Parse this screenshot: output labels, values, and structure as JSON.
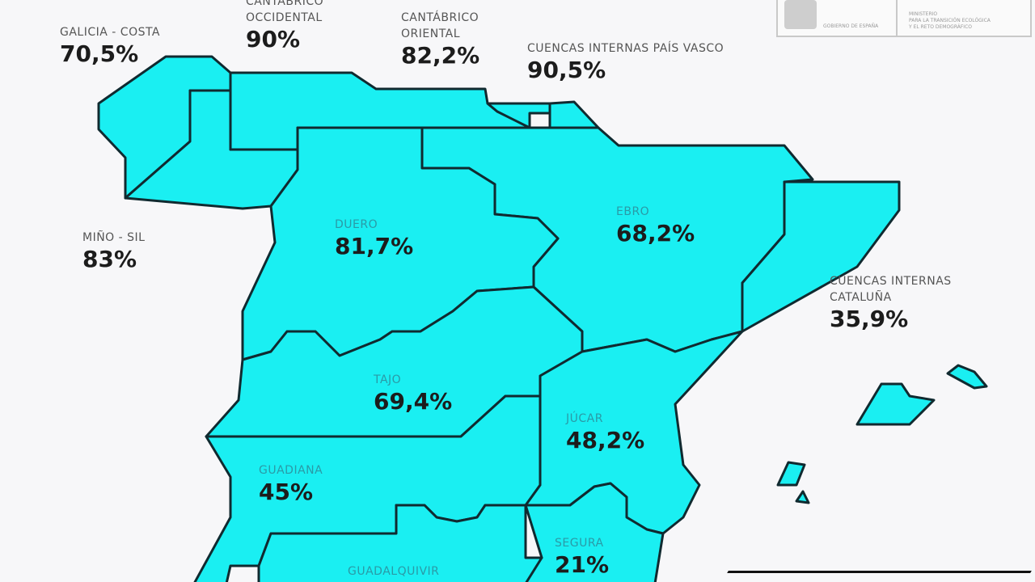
{
  "logo": {
    "government": "GOBIERNO DE ESPAÑA",
    "ministry_line1": "MINISTERIO",
    "ministry_line2": "PARA LA TRANSICIÓN ECOLÓGICA",
    "ministry_line3": "Y EL RETO DEMOGRÁFICO"
  },
  "colors": {
    "region_fill": "#1aeff2",
    "border": "#102a30"
  },
  "regions": [
    {
      "name": "GALICIA - COSTA",
      "value": "70,5%"
    },
    {
      "name": "CANTÁBRICO OCCIDENTAL",
      "value": "90%"
    },
    {
      "name": "CANTÁBRICO ORIENTAL",
      "value": "82,2%"
    },
    {
      "name": "CUENCAS INTERNAS PAÍS VASCO",
      "value": "90,5%"
    },
    {
      "name": "MIÑO - SIL",
      "value": "83%"
    },
    {
      "name": "DUERO",
      "value": "81,7%"
    },
    {
      "name": "EBRO",
      "value": "68,2%"
    },
    {
      "name": "CUENCAS INTERNAS CATALUÑA",
      "value": "35,9%"
    },
    {
      "name": "TAJO",
      "value": "69,4%"
    },
    {
      "name": "JÚCAR",
      "value": "48,2%"
    },
    {
      "name": "GUADIANA",
      "value": "45%"
    },
    {
      "name": "SEGURA",
      "value": "21%"
    },
    {
      "name": "GUADALQUIVIR",
      "value": ""
    }
  ]
}
